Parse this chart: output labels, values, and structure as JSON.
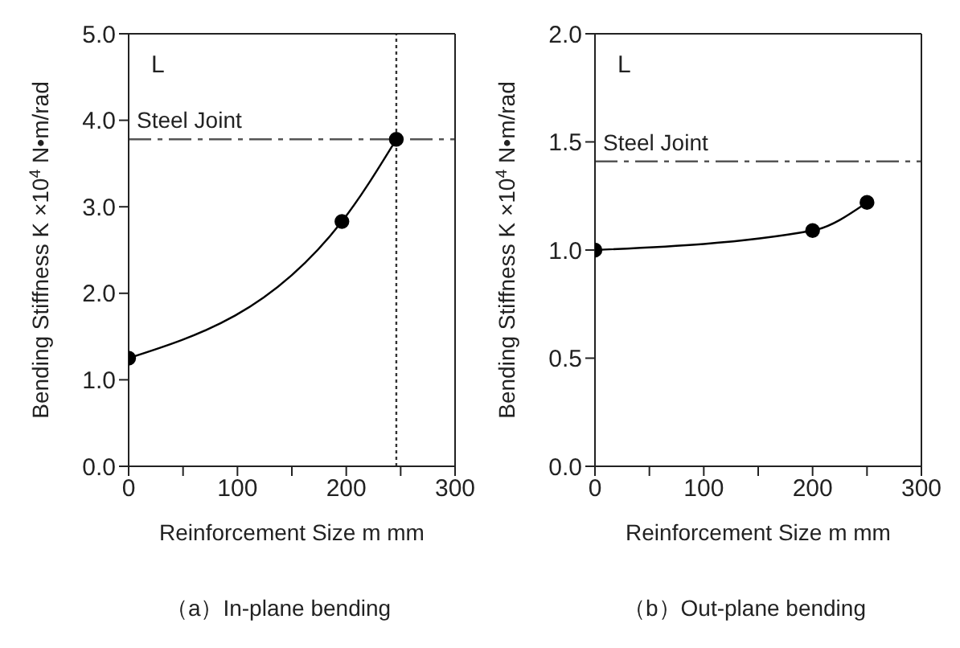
{
  "chart_data": [
    {
      "type": "line",
      "title": "（a）In-plane bending",
      "xlabel": "Reinforcement Size m   mm",
      "ylabel": "Bending Stiffness K   ×10$^{4}$ N•m/rad",
      "x": [
        0,
        196,
        246
      ],
      "series": [
        {
          "color": "#000000",
          "values": [
            1.25,
            2.83,
            3.78
          ]
        }
      ],
      "xlim": [
        0,
        300
      ],
      "xticks": [
        0,
        {
          "value": 50,
          "label": null
        },
        100,
        {
          "value": 150,
          "label": null
        },
        200,
        {
          "value": 250,
          "label": null
        },
        300
      ],
      "ylim": [
        0,
        5
      ],
      "yticks": [
        {
          "value": 0,
          "label": "0.0"
        },
        {
          "value": 1,
          "label": "1.0"
        },
        {
          "value": 2,
          "label": "2.0"
        },
        {
          "value": 3,
          "label": "3.0"
        },
        {
          "value": 4,
          "label": "4.0"
        },
        {
          "value": 5,
          "label": "5.0"
        }
      ],
      "ref_lines": [
        {
          "axis": "y",
          "value": 3.78,
          "label": "Steel Joint",
          "color": "#555555",
          "line_style": "dashed"
        },
        {
          "axis": "x",
          "value": 246,
          "label": null,
          "color": "#333333",
          "line_style": "dotted"
        }
      ],
      "annotations": [
        "L"
      ],
      "marker": "circle",
      "line_style": "solid",
      "grid": false,
      "legend": false
    },
    {
      "type": "line",
      "title": "（b）Out-plane bending",
      "xlabel": "Reinforcement Size m   mm",
      "ylabel": "Bending Stiffness K   ×10$^{4}$ N•m/rad",
      "x": [
        0,
        200,
        250
      ],
      "series": [
        {
          "color": "#000000",
          "values": [
            1.0,
            1.09,
            1.22
          ]
        }
      ],
      "xlim": [
        0,
        300
      ],
      "xticks": [
        0,
        {
          "value": 50,
          "label": null
        },
        100,
        {
          "value": 150,
          "label": null
        },
        200,
        {
          "value": 250,
          "label": null
        },
        300
      ],
      "ylim": [
        0,
        2
      ],
      "yticks": [
        {
          "value": 0,
          "label": "0.0"
        },
        {
          "value": 0.5,
          "label": "0.5"
        },
        {
          "value": 1,
          "label": "1.0"
        },
        {
          "value": 1.5,
          "label": "1.5"
        },
        {
          "value": 2,
          "label": "2.0"
        }
      ],
      "ref_lines": [
        {
          "axis": "y",
          "value": 1.41,
          "label": "Steel Joint",
          "color": "#555555",
          "line_style": "dashed"
        }
      ],
      "annotations": [
        "L"
      ],
      "marker": "circle",
      "line_style": "solid",
      "grid": false,
      "legend": false
    }
  ]
}
